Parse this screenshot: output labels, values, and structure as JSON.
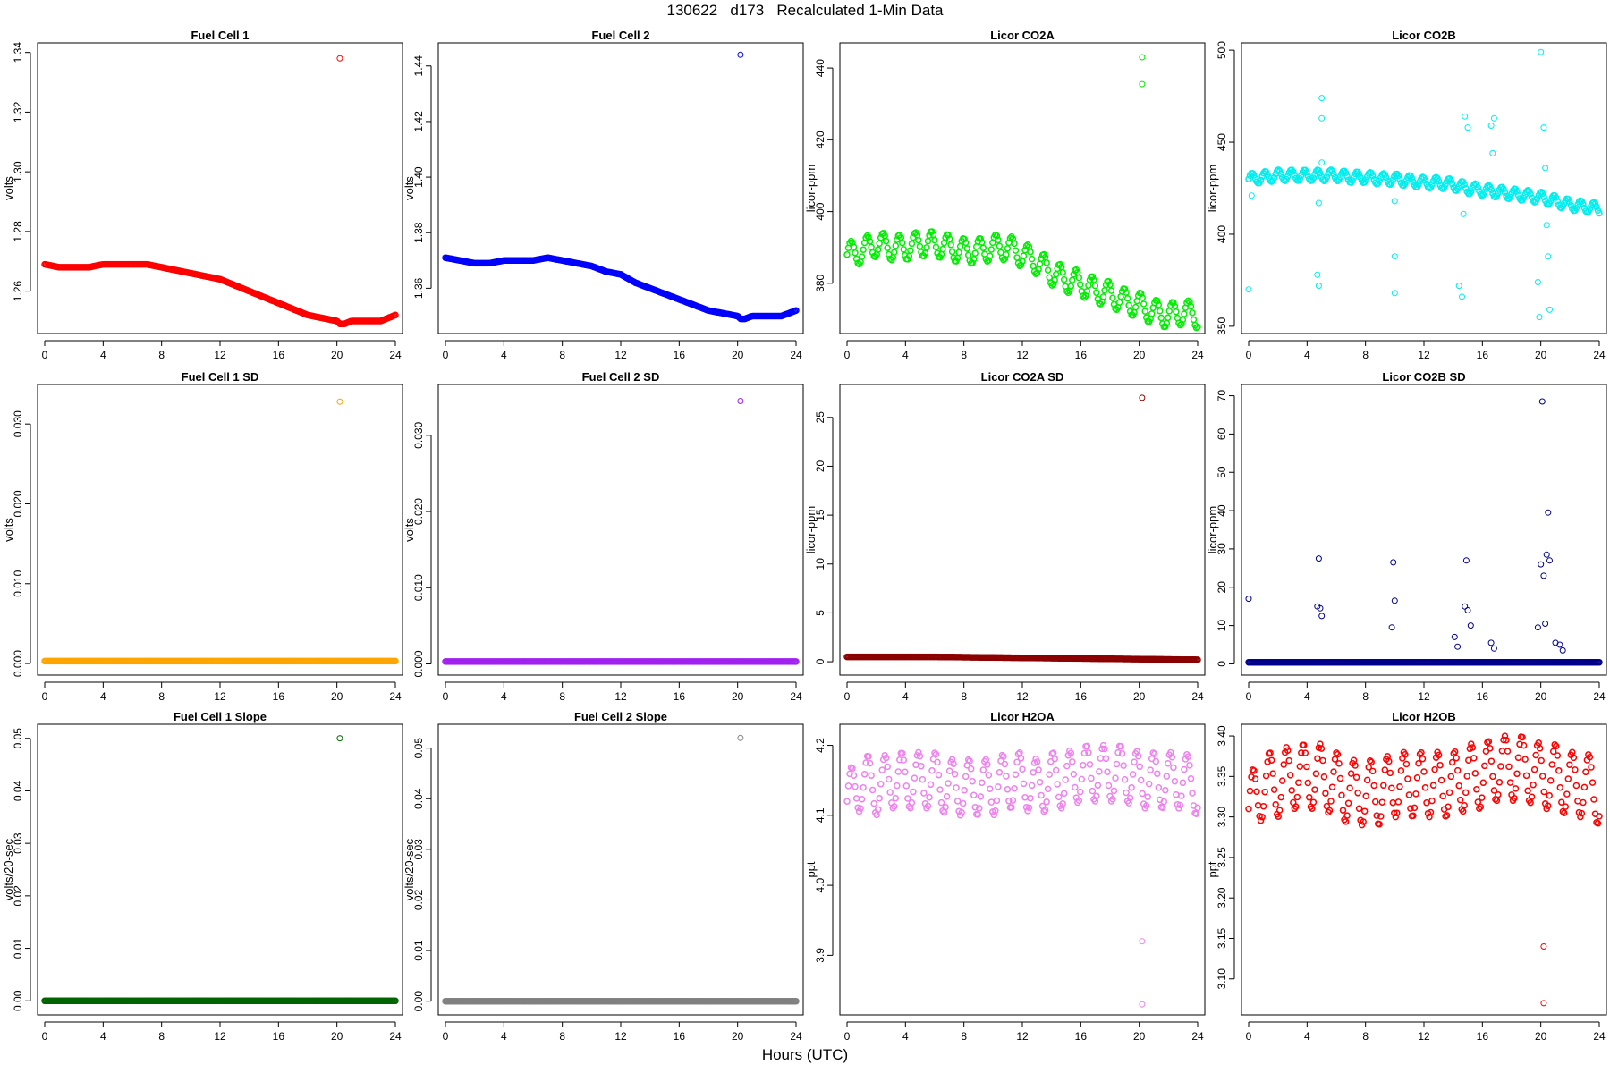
{
  "figure": {
    "title": "130622   d173   Recalculated 1-Min Data",
    "xlabel": "Hours (UTC)"
  },
  "chart_data": [
    {
      "type": "scatter",
      "title": "Fuel Cell 1",
      "ylabel": "volts",
      "color": "#ff0000",
      "xlim": [
        0,
        24
      ],
      "ylim": [
        1.247,
        1.342
      ],
      "xticks": [
        "0",
        "4",
        "8",
        "12",
        "16",
        "20",
        "24"
      ],
      "yticks": [
        "1.26",
        "1.28",
        "1.30",
        "1.32",
        "1.34"
      ],
      "ytick_values": [
        1.26,
        1.28,
        1.3,
        1.32,
        1.34
      ],
      "x": [
        0,
        1,
        2,
        3,
        4,
        5,
        6,
        7,
        8,
        9,
        10,
        11,
        12,
        13,
        14,
        15,
        16,
        17,
        18,
        19,
        20,
        20.2,
        20.5,
        21,
        22,
        23,
        24
      ],
      "y": [
        1.269,
        1.268,
        1.268,
        1.268,
        1.269,
        1.269,
        1.269,
        1.269,
        1.268,
        1.267,
        1.266,
        1.265,
        1.264,
        1.262,
        1.26,
        1.258,
        1.256,
        1.254,
        1.252,
        1.251,
        1.25,
        1.249,
        1.249,
        1.25,
        1.25,
        1.25,
        1.252
      ],
      "outliers": [
        [
          20.2,
          1.338
        ]
      ]
    },
    {
      "type": "scatter",
      "title": "Fuel Cell 2",
      "ylabel": "volts",
      "color": "#0000ff",
      "xlim": [
        0,
        24
      ],
      "ylim": [
        1.345,
        1.447
      ],
      "xticks": [
        "0",
        "4",
        "8",
        "12",
        "16",
        "20",
        "24"
      ],
      "yticks": [
        "1.36",
        "1.38",
        "1.40",
        "1.42",
        "1.44"
      ],
      "ytick_values": [
        1.36,
        1.38,
        1.4,
        1.42,
        1.44
      ],
      "x": [
        0,
        1,
        2,
        3,
        4,
        5,
        6,
        7,
        8,
        9,
        10,
        11,
        12,
        13,
        14,
        15,
        16,
        17,
        18,
        19,
        20,
        20.2,
        20.5,
        21,
        22,
        23,
        24
      ],
      "y": [
        1.371,
        1.37,
        1.369,
        1.369,
        1.37,
        1.37,
        1.37,
        1.371,
        1.37,
        1.369,
        1.368,
        1.366,
        1.365,
        1.362,
        1.36,
        1.358,
        1.356,
        1.354,
        1.352,
        1.351,
        1.35,
        1.349,
        1.349,
        1.35,
        1.35,
        1.35,
        1.352
      ],
      "outliers": [
        [
          20.2,
          1.444
        ]
      ]
    },
    {
      "type": "scatter",
      "title": "Licor CO2A",
      "ylabel": "licor-ppm",
      "color": "#00ee00",
      "xlim": [
        0,
        24
      ],
      "ylim": [
        367,
        446
      ],
      "xticks": [
        "0",
        "4",
        "8",
        "12",
        "16",
        "20",
        "24"
      ],
      "yticks": [
        "380",
        "400",
        "420",
        "440"
      ],
      "ytick_values": [
        380,
        400,
        420,
        440
      ],
      "x": [
        0,
        1,
        2,
        3,
        4,
        5,
        6,
        7,
        8,
        9,
        10,
        11,
        12,
        13,
        14,
        15,
        16,
        17,
        18,
        19,
        20,
        21,
        22,
        23,
        24
      ],
      "y": [
        388,
        389,
        391,
        390,
        390,
        391,
        391,
        390,
        389,
        389,
        390,
        390,
        388,
        386,
        383,
        381,
        380,
        378,
        377,
        375,
        374,
        372,
        371,
        372,
        371
      ],
      "osc_amp": 3.5,
      "osc_period": 1.1,
      "outliers": [
        [
          20.2,
          443
        ],
        [
          20.2,
          435.5
        ]
      ]
    },
    {
      "type": "scatter",
      "title": "Licor CO2B",
      "ylabel": "licor-ppm",
      "color": "#00eeee",
      "xlim": [
        0,
        24
      ],
      "ylim": [
        348,
        502
      ],
      "xticks": [
        "0",
        "4",
        "8",
        "12",
        "16",
        "20",
        "24"
      ],
      "yticks": [
        "350",
        "400",
        "450",
        "500"
      ],
      "ytick_values": [
        350,
        400,
        450,
        500
      ],
      "x": [
        0,
        1,
        2,
        3,
        4,
        5,
        6,
        7,
        8,
        9,
        10,
        11,
        12,
        13,
        14,
        15,
        16,
        17,
        18,
        19,
        20,
        21,
        22,
        23,
        24
      ],
      "y": [
        430,
        431,
        432,
        432,
        432,
        432,
        432,
        431,
        431,
        430,
        430,
        429,
        428,
        428,
        427,
        425,
        424,
        423,
        422,
        421,
        420,
        418,
        416,
        415,
        414
      ],
      "osc_amp": 3,
      "osc_period": 0.9,
      "outliers": [
        [
          0,
          370
        ],
        [
          0.2,
          421
        ],
        [
          4.7,
          378
        ],
        [
          4.8,
          372
        ],
        [
          4.8,
          417
        ],
        [
          5,
          474
        ],
        [
          5,
          463
        ],
        [
          5,
          439
        ],
        [
          10,
          388
        ],
        [
          10,
          368
        ],
        [
          10,
          418
        ],
        [
          14.4,
          372
        ],
        [
          14.6,
          366
        ],
        [
          14.7,
          411
        ],
        [
          14.8,
          464
        ],
        [
          15,
          458
        ],
        [
          16.6,
          459
        ],
        [
          16.7,
          444
        ],
        [
          16.8,
          463
        ],
        [
          19.8,
          374
        ],
        [
          19.9,
          355
        ],
        [
          20,
          499
        ],
        [
          20.2,
          458
        ],
        [
          20.3,
          436
        ],
        [
          20.5,
          388
        ],
        [
          20.6,
          359
        ],
        [
          20.4,
          405
        ]
      ]
    },
    {
      "type": "scatter",
      "title": "Fuel Cell 1 SD",
      "ylabel": "volts",
      "color": "#ffa500",
      "xlim": [
        0,
        24
      ],
      "ylim": [
        -0.001,
        0.0345
      ],
      "xticks": [
        "0",
        "4",
        "8",
        "12",
        "16",
        "20",
        "24"
      ],
      "yticks": [
        "0.000",
        "0.010",
        "0.020",
        "0.030"
      ],
      "ytick_values": [
        0,
        0.01,
        0.02,
        0.03
      ],
      "x": [
        0,
        24
      ],
      "y": [
        0.0003,
        0.0003
      ],
      "outliers": [
        [
          20.2,
          0.0328
        ]
      ]
    },
    {
      "type": "scatter",
      "title": "Fuel Cell 2 SD",
      "ylabel": "volts",
      "color": "#a020f0",
      "xlim": [
        0,
        24
      ],
      "ylim": [
        -0.001,
        0.0362
      ],
      "xticks": [
        "0",
        "4",
        "8",
        "12",
        "16",
        "20",
        "24"
      ],
      "yticks": [
        "0.000",
        "0.010",
        "0.020",
        "0.030"
      ],
      "ytick_values": [
        0,
        0.01,
        0.02,
        0.03
      ],
      "x": [
        0,
        24
      ],
      "y": [
        0.0003,
        0.0003
      ],
      "outliers": [
        [
          20.2,
          0.0345
        ]
      ]
    },
    {
      "type": "scatter",
      "title": "Licor CO2A SD",
      "ylabel": "licor-ppm",
      "color": "#8b0000",
      "xlim": [
        0,
        24
      ],
      "ylim": [
        -1,
        28
      ],
      "xticks": [
        "0",
        "4",
        "8",
        "12",
        "16",
        "20",
        "24"
      ],
      "yticks": [
        "0",
        "5",
        "10",
        "15",
        "20",
        "25"
      ],
      "ytick_values": [
        0,
        5,
        10,
        15,
        20,
        25
      ],
      "x": [
        0,
        6,
        12,
        18,
        24
      ],
      "y": [
        0.5,
        0.5,
        0.4,
        0.3,
        0.2
      ],
      "outliers": [
        [
          20.2,
          27
        ]
      ]
    },
    {
      "type": "scatter",
      "title": "Licor CO2B SD",
      "ylabel": "licor-ppm",
      "color": "#00008b",
      "xlim": [
        0,
        24
      ],
      "ylim": [
        -2,
        72
      ],
      "xticks": [
        "0",
        "4",
        "8",
        "12",
        "16",
        "20",
        "24"
      ],
      "yticks": [
        "0",
        "10",
        "20",
        "30",
        "40",
        "50",
        "60",
        "70"
      ],
      "ytick_values": [
        0,
        10,
        20,
        30,
        40,
        50,
        60,
        70
      ],
      "x": [
        0,
        24
      ],
      "y": [
        0.4,
        0.4
      ],
      "outliers": [
        [
          0,
          17
        ],
        [
          4.7,
          15
        ],
        [
          4.8,
          27.5
        ],
        [
          4.9,
          14.5
        ],
        [
          5,
          12.5
        ],
        [
          9.8,
          9.5
        ],
        [
          9.9,
          26.5
        ],
        [
          10,
          16.5
        ],
        [
          14.1,
          7
        ],
        [
          14.3,
          4.5
        ],
        [
          14.8,
          15
        ],
        [
          14.9,
          27
        ],
        [
          15,
          14
        ],
        [
          15.2,
          10
        ],
        [
          16.6,
          5.5
        ],
        [
          16.8,
          4
        ],
        [
          19.8,
          9.5
        ],
        [
          20,
          26
        ],
        [
          20.1,
          68.5
        ],
        [
          20.2,
          23
        ],
        [
          20.3,
          10.5
        ],
        [
          20.4,
          28.5
        ],
        [
          20.5,
          39.5
        ],
        [
          20.6,
          27
        ],
        [
          21,
          5.5
        ],
        [
          21.3,
          5
        ],
        [
          21.5,
          3.5
        ]
      ]
    },
    {
      "type": "scatter",
      "title": "Fuel Cell 1 Slope",
      "ylabel": "volts/20-sec",
      "color": "#006400",
      "xlim": [
        0,
        24
      ],
      "ylim": [
        -0.002,
        0.052
      ],
      "xticks": [
        "0",
        "4",
        "8",
        "12",
        "16",
        "20",
        "24"
      ],
      "yticks": [
        "0.00",
        "0.01",
        "0.02",
        "0.03",
        "0.04",
        "0.05"
      ],
      "ytick_values": [
        0,
        0.01,
        0.02,
        0.03,
        0.04,
        0.05
      ],
      "x": [
        0,
        24
      ],
      "y": [
        0,
        0
      ],
      "outliers": [
        [
          20.2,
          0.05
        ]
      ]
    },
    {
      "type": "scatter",
      "title": "Fuel Cell 2 Slope",
      "ylabel": "volts/20-sec",
      "color": "#808080",
      "xlim": [
        0,
        24
      ],
      "ylim": [
        -0.002,
        0.054
      ],
      "xticks": [
        "0",
        "4",
        "8",
        "12",
        "16",
        "20",
        "24"
      ],
      "yticks": [
        "0.00",
        "0.01",
        "0.02",
        "0.03",
        "0.04",
        "0.05"
      ],
      "ytick_values": [
        0,
        0.01,
        0.02,
        0.03,
        0.04,
        0.05
      ],
      "x": [
        0,
        24
      ],
      "y": [
        0,
        0
      ],
      "outliers": [
        [
          20.2,
          0.052
        ]
      ]
    },
    {
      "type": "scatter",
      "title": "Licor H2OA",
      "ylabel": "ppt",
      "color": "#ee82ee",
      "xlim": [
        0,
        24
      ],
      "ylim": [
        3.82,
        4.225
      ],
      "xticks": [
        "0",
        "4",
        "8",
        "12",
        "16",
        "20",
        "24"
      ],
      "yticks": [
        "3.9",
        "4.0",
        "4.1",
        "4.2"
      ],
      "ytick_values": [
        3.9,
        4.0,
        4.1,
        4.2
      ],
      "x": [
        0,
        1,
        2,
        3,
        4,
        5,
        6,
        7,
        8,
        9,
        10,
        11,
        12,
        13,
        14,
        15,
        16,
        17,
        18,
        19,
        20,
        21,
        22,
        23,
        24
      ],
      "y": [
        4.12,
        4.15,
        4.14,
        4.15,
        4.15,
        4.15,
        4.15,
        4.14,
        4.14,
        4.14,
        4.14,
        4.15,
        4.15,
        4.14,
        4.15,
        4.15,
        4.16,
        4.16,
        4.16,
        4.16,
        4.15,
        4.15,
        4.15,
        4.15,
        4.14
      ],
      "osc_amp": 0.04,
      "osc_period": 1.15,
      "outliers": [
        [
          20.2,
          3.92
        ],
        [
          20.2,
          3.83
        ]
      ]
    },
    {
      "type": "scatter",
      "title": "Licor H2OB",
      "ylabel": "ppt",
      "color": "#ff0000",
      "xlim": [
        0,
        24
      ],
      "ylim": [
        3.06,
        3.41
      ],
      "xticks": [
        "0",
        "4",
        "8",
        "12",
        "16",
        "20",
        "24"
      ],
      "yticks": [
        "3.10",
        "3.15",
        "3.20",
        "3.25",
        "3.30",
        "3.35",
        "3.40"
      ],
      "ytick_values": [
        3.1,
        3.15,
        3.2,
        3.25,
        3.3,
        3.35,
        3.4
      ],
      "x": [
        0,
        1,
        2,
        3,
        4,
        5,
        6,
        7,
        8,
        9,
        10,
        11,
        12,
        13,
        14,
        15,
        16,
        17,
        18,
        19,
        20,
        21,
        22,
        23,
        24
      ],
      "y": [
        3.31,
        3.34,
        3.34,
        3.35,
        3.35,
        3.35,
        3.34,
        3.33,
        3.33,
        3.33,
        3.34,
        3.34,
        3.34,
        3.34,
        3.34,
        3.35,
        3.35,
        3.36,
        3.36,
        3.36,
        3.35,
        3.35,
        3.34,
        3.34,
        3.33
      ],
      "osc_amp": 0.04,
      "osc_period": 1.15,
      "outliers": [
        [
          20.2,
          3.14
        ],
        [
          20.2,
          3.07
        ]
      ]
    }
  ]
}
